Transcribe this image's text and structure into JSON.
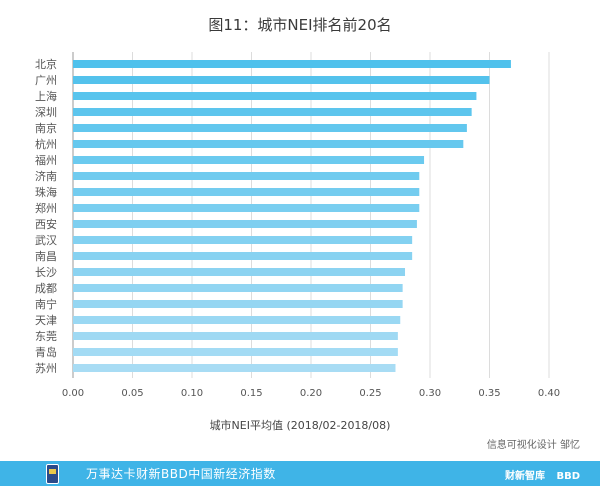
{
  "chart_data": {
    "type": "bar",
    "orientation": "horizontal",
    "title": "图11：城市NEI排名前20名",
    "xlabel": "城市NEI平均值 (2018/02-2018/08)",
    "ylabel": "",
    "xlim": [
      0,
      0.4
    ],
    "ticks": [
      "0.00",
      "0.05",
      "0.10",
      "0.15",
      "0.20",
      "0.25",
      "0.30",
      "0.35",
      "0.40"
    ],
    "grid": true,
    "categories": [
      "北京",
      "广州",
      "上海",
      "深圳",
      "南京",
      "杭州",
      "福州",
      "济南",
      "珠海",
      "郑州",
      "西安",
      "武汉",
      "南昌",
      "长沙",
      "成都",
      "南宁",
      "天津",
      "东莞",
      "青岛",
      "苏州"
    ],
    "values": [
      0.368,
      0.35,
      0.339,
      0.335,
      0.331,
      0.328,
      0.295,
      0.291,
      0.291,
      0.291,
      0.289,
      0.285,
      0.285,
      0.279,
      0.277,
      0.277,
      0.275,
      0.273,
      0.273,
      0.271
    ],
    "colors": {
      "bar_top": "#4fc1ec",
      "bar_bottom": "#a8dcf4",
      "grid": "#dcdcdc",
      "axis": "#9a9a9a"
    }
  },
  "credit": "信息可视化设计 邹忆",
  "footer": {
    "text": "万事达卡财新BBD中国新经济指数",
    "logo1": "财新智库",
    "logo2": "BBD",
    "bg_color": "#3fb4e7"
  }
}
